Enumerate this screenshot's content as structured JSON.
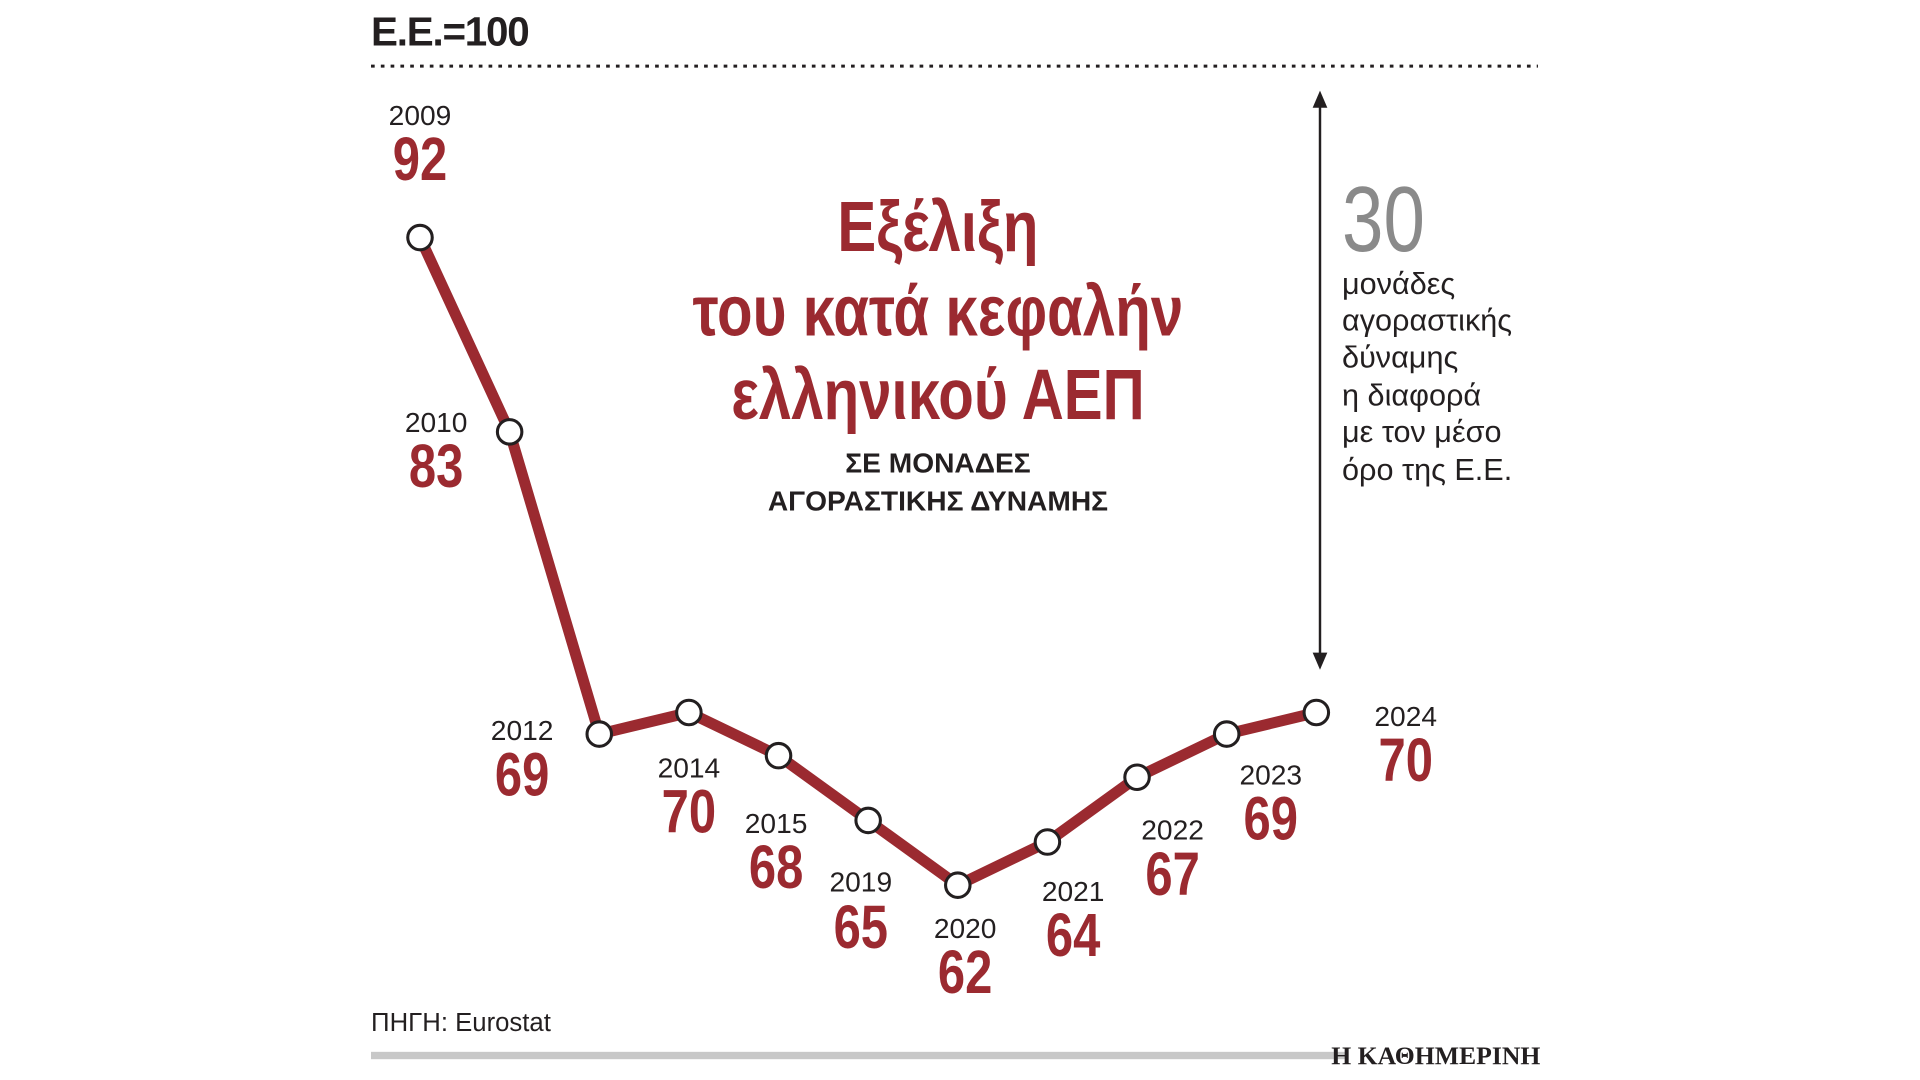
{
  "header": {
    "baseline": "Ε.Ε.=100"
  },
  "title": {
    "lines": [
      "Εξέλιξη",
      "του κατά κεφαλήν",
      "ελληνικού ΑΕΠ"
    ],
    "subtitle_lines": [
      "ΣΕ ΜΟΝΑΔΕΣ",
      "ΑΓΟΡΑΣΤΙΚΗΣ ΔΥΝΑΜΗΣ"
    ]
  },
  "annotation": {
    "number": "30",
    "lines": [
      "μονάδες",
      "αγοραστικής",
      "δύναμης",
      "η διαφορά",
      "με τον μέσο",
      "όρο της Ε.Ε."
    ]
  },
  "footer": {
    "source": "ΠΗΓΗ: Eurostat",
    "brand": "Η ΚΑΘΗΜΕΡΙΝΗ"
  },
  "colors": {
    "line": "#9b2a30",
    "text": "#231f20",
    "gray": "#8a8a8a"
  },
  "chart_data": {
    "type": "line",
    "title": "Εξέλιξη του κατά κεφαλήν ελληνικού ΑΕΠ",
    "subtitle": "ΣΕ ΜΟΝΑΔΕΣ ΑΓΟΡΑΣΤΙΚΗΣ ΔΥΝΑΜΗΣ",
    "reference": "Ε.Ε.=100",
    "categories": [
      "2009",
      "2010",
      "2012",
      "2014",
      "2015",
      "2019",
      "2020",
      "2021",
      "2022",
      "2023",
      "2024"
    ],
    "values": [
      92,
      83,
      69,
      70,
      68,
      65,
      62,
      64,
      67,
      69,
      70
    ],
    "value_labels": [
      "92",
      "83",
      "69",
      "70",
      "68",
      "65",
      "62",
      "64",
      "67",
      "69",
      "70"
    ],
    "xlabel": "",
    "ylabel": "",
    "grid": false
  }
}
